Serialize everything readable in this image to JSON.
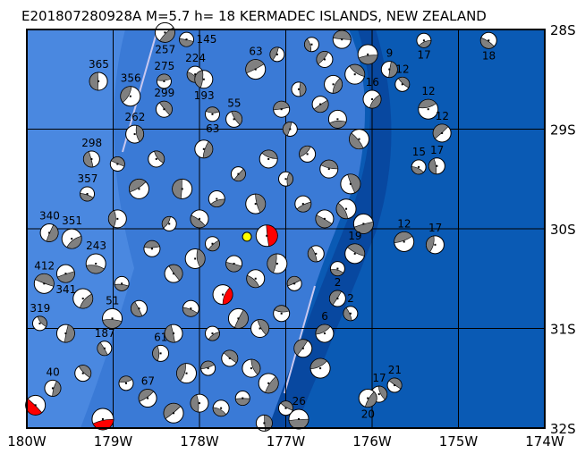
{
  "title": "E201807280928A M=5.7 h= 18 KERMADEC ISLANDS, NEW ZEALAND",
  "map": {
    "lon_range": [
      -180,
      -174
    ],
    "lat_range": [
      -32,
      -28
    ],
    "lon_ticks": [
      {
        "v": -180,
        "label": "180W"
      },
      {
        "v": -179,
        "label": "179W"
      },
      {
        "v": -178,
        "label": "178W"
      },
      {
        "v": -177,
        "label": "177W"
      },
      {
        "v": -176,
        "label": "176W"
      },
      {
        "v": -175,
        "label": "175W"
      },
      {
        "v": -174,
        "label": "174W"
      }
    ],
    "lat_ticks": [
      {
        "v": -28,
        "label": "28S"
      },
      {
        "v": -29,
        "label": "29S"
      },
      {
        "v": -30,
        "label": "30S"
      },
      {
        "v": -31,
        "label": "31S"
      },
      {
        "v": -32,
        "label": "32S"
      }
    ],
    "grid": true,
    "colors": {
      "shallow": "#4a88e0",
      "mid": "#3a7ad6",
      "deep": "#0a5ab4",
      "trench": "#0848a0",
      "plate_boundary": "#c8c8f0",
      "compression": "#808080",
      "highlight": "#ff0000",
      "epicenter": "#ffff00"
    },
    "epicenter": {
      "lon": -177.45,
      "lat": -30.08
    },
    "events": [
      [
        -175.4,
        -28.11,
        "17",
        "g"
      ],
      [
        -174.65,
        -28.11,
        "18",
        "g"
      ],
      [
        -179.17,
        -28.52,
        "365",
        "g"
      ],
      [
        -178.8,
        -28.67,
        "356",
        "g"
      ],
      [
        -178.41,
        -28.52,
        "275",
        "g"
      ],
      [
        -178.41,
        -28.8,
        "299",
        "g"
      ],
      [
        -178.75,
        -29.05,
        "262",
        "g"
      ],
      [
        -178.4,
        -28.03,
        "257",
        "g"
      ],
      [
        -178.15,
        -28.1,
        "145",
        "g"
      ],
      [
        -178.05,
        -28.45,
        "224",
        "g"
      ],
      [
        -177.95,
        -28.5,
        "193",
        "g"
      ],
      [
        -177.35,
        -28.4,
        "63",
        "g"
      ],
      [
        -177.85,
        -28.85,
        "63",
        "g"
      ],
      [
        -177.6,
        -28.9,
        "55",
        "g"
      ],
      [
        -179.74,
        -30.04,
        "340",
        "g"
      ],
      [
        -179.48,
        -30.1,
        "351",
        "g"
      ],
      [
        -179.3,
        -29.65,
        "357",
        "g"
      ],
      [
        -179.25,
        -29.3,
        "298",
        "g"
      ],
      [
        -175.27,
        -30.16,
        "17",
        "g"
      ],
      [
        -175.63,
        -30.13,
        "12",
        "g"
      ],
      [
        -175.74,
        -31.57,
        "21",
        "g"
      ],
      [
        -175.92,
        -31.66,
        "17",
        "g"
      ],
      [
        -176.05,
        -31.7,
        "20",
        "g"
      ],
      [
        -176.85,
        -31.91,
        "26",
        "g"
      ],
      [
        -175.46,
        -29.38,
        "15",
        "g"
      ],
      [
        -175.25,
        -29.37,
        "17",
        "g"
      ],
      [
        -175.19,
        -29.04,
        "12",
        "g"
      ],
      [
        -175.35,
        -28.8,
        "12",
        "g"
      ],
      [
        -175.65,
        -28.55,
        "12",
        "g"
      ],
      [
        -175.8,
        -28.4,
        "9",
        "g"
      ],
      [
        -176.0,
        -28.7,
        "16",
        "g"
      ],
      [
        -179.01,
        -30.9,
        "51",
        "g"
      ],
      [
        -179.1,
        -31.2,
        "187",
        "g"
      ],
      [
        -178.45,
        -31.25,
        "61",
        "g"
      ],
      [
        -178.6,
        -31.7,
        "67",
        "g"
      ],
      [
        -179.8,
        -30.55,
        "412",
        "g"
      ],
      [
        -179.85,
        -30.95,
        "319",
        "g"
      ],
      [
        -179.7,
        -31.6,
        "40",
        "g"
      ],
      [
        -179.55,
        -30.45,
        "341",
        "g"
      ],
      [
        -179.2,
        -30.35,
        "243",
        "g"
      ],
      [
        -176.25,
        -30.85,
        "2",
        "g"
      ],
      [
        -176.4,
        -30.7,
        "2",
        "g"
      ],
      [
        -176.55,
        -31.05,
        "6",
        "g"
      ],
      [
        -176.2,
        -30.25,
        "19",
        "g"
      ],
      [
        -177.22,
        -30.07,
        "",
        "r"
      ],
      [
        -177.73,
        -30.66,
        "",
        "r"
      ],
      [
        -179.12,
        -31.91,
        "",
        "r"
      ],
      [
        -179.9,
        -31.77,
        "",
        "r"
      ],
      [
        -176.7,
        -28.15,
        "",
        "g"
      ],
      [
        -176.55,
        -28.3,
        "",
        "g"
      ],
      [
        -176.35,
        -28.1,
        "",
        "g"
      ],
      [
        -176.2,
        -28.45,
        "",
        "g"
      ],
      [
        -176.85,
        -28.6,
        "",
        "g"
      ],
      [
        -176.6,
        -28.75,
        "",
        "g"
      ],
      [
        -176.4,
        -28.9,
        "",
        "g"
      ],
      [
        -176.15,
        -29.1,
        "",
        "g"
      ],
      [
        -176.95,
        -29.0,
        "",
        "g"
      ],
      [
        -176.75,
        -29.25,
        "",
        "g"
      ],
      [
        -176.5,
        -29.4,
        "",
        "g"
      ],
      [
        -176.25,
        -29.55,
        "",
        "g"
      ],
      [
        -177.0,
        -29.5,
        "",
        "g"
      ],
      [
        -176.8,
        -29.75,
        "",
        "g"
      ],
      [
        -176.55,
        -29.9,
        "",
        "g"
      ],
      [
        -176.3,
        -29.8,
        "",
        "g"
      ],
      [
        -177.1,
        -28.25,
        "",
        "g"
      ],
      [
        -177.05,
        -28.8,
        "",
        "g"
      ],
      [
        -177.2,
        -29.3,
        "",
        "g"
      ],
      [
        -177.35,
        -29.75,
        "",
        "g"
      ],
      [
        -177.55,
        -29.45,
        "",
        "g"
      ],
      [
        -177.8,
        -29.7,
        "",
        "g"
      ],
      [
        -178.0,
        -29.9,
        "",
        "g"
      ],
      [
        -178.2,
        -29.6,
        "",
        "g"
      ],
      [
        -178.35,
        -29.95,
        "",
        "g"
      ],
      [
        -178.55,
        -30.2,
        "",
        "g"
      ],
      [
        -178.3,
        -30.45,
        "",
        "g"
      ],
      [
        -178.05,
        -30.3,
        "",
        "g"
      ],
      [
        -177.85,
        -30.15,
        "",
        "g"
      ],
      [
        -177.6,
        -30.35,
        "",
        "g"
      ],
      [
        -177.35,
        -30.5,
        "",
        "g"
      ],
      [
        -177.1,
        -30.35,
        "",
        "g"
      ],
      [
        -176.9,
        -30.55,
        "",
        "g"
      ],
      [
        -177.05,
        -30.85,
        "",
        "g"
      ],
      [
        -177.3,
        -31.0,
        "",
        "g"
      ],
      [
        -177.55,
        -30.9,
        "",
        "g"
      ],
      [
        -177.85,
        -31.05,
        "",
        "g"
      ],
      [
        -178.1,
        -30.8,
        "",
        "g"
      ],
      [
        -178.3,
        -31.05,
        "",
        "g"
      ],
      [
        -178.15,
        -31.45,
        "",
        "g"
      ],
      [
        -177.9,
        -31.4,
        "",
        "g"
      ],
      [
        -177.65,
        -31.3,
        "",
        "g"
      ],
      [
        -177.4,
        -31.4,
        "",
        "g"
      ],
      [
        -177.2,
        -31.55,
        "",
        "g"
      ],
      [
        -177.5,
        -31.7,
        "",
        "g"
      ],
      [
        -177.75,
        -31.8,
        "",
        "g"
      ],
      [
        -178.0,
        -31.75,
        "",
        "g"
      ],
      [
        -178.3,
        -31.85,
        "",
        "g"
      ],
      [
        -178.85,
        -31.55,
        "",
        "g"
      ],
      [
        -179.35,
        -31.45,
        "",
        "g"
      ],
      [
        -179.55,
        -31.05,
        "",
        "g"
      ],
      [
        -179.35,
        -30.7,
        "",
        "g"
      ],
      [
        -178.9,
        -30.55,
        "",
        "g"
      ],
      [
        -178.7,
        -30.8,
        "",
        "g"
      ],
      [
        -178.95,
        -29.9,
        "",
        "g"
      ],
      [
        -178.7,
        -29.6,
        "",
        "g"
      ],
      [
        -178.95,
        -29.35,
        "",
        "g"
      ],
      [
        -178.5,
        -29.3,
        "",
        "g"
      ],
      [
        -177.95,
        -29.2,
        "",
        "g"
      ],
      [
        -176.1,
        -29.95,
        "",
        "g"
      ],
      [
        -176.4,
        -30.4,
        "",
        "g"
      ],
      [
        -176.65,
        -30.25,
        "",
        "g"
      ],
      [
        -176.8,
        -31.2,
        "",
        "g"
      ],
      [
        -176.6,
        -31.4,
        "",
        "g"
      ],
      [
        -177.0,
        -31.8,
        "",
        "g"
      ],
      [
        -177.25,
        -31.95,
        "",
        "g"
      ],
      [
        -176.45,
        -28.55,
        "",
        "g"
      ],
      [
        -176.05,
        -28.25,
        "",
        "g"
      ]
    ]
  }
}
